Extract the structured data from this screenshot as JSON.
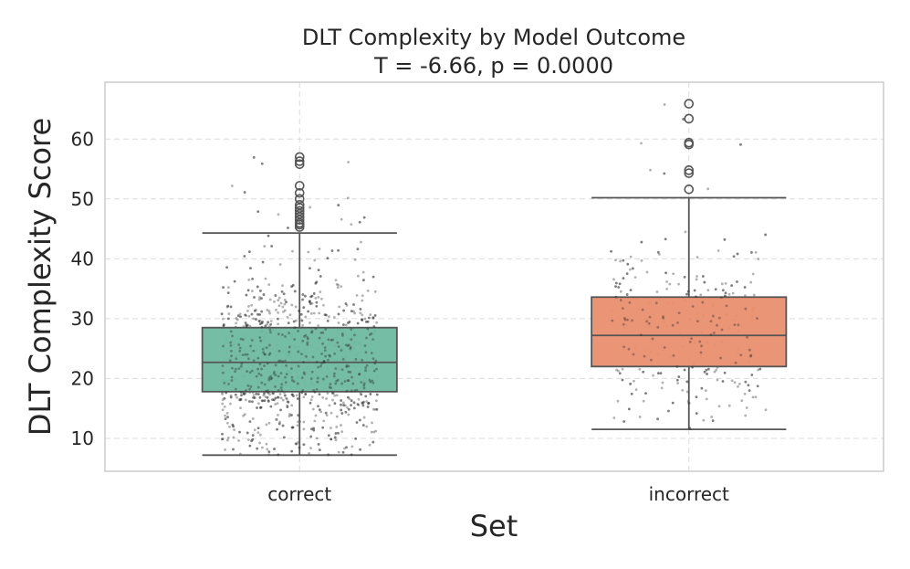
{
  "chart_data": {
    "type": "box",
    "title": "DLT Complexity by Model Outcome",
    "subtitle": "T = -6.66, p = 0.0000",
    "xlabel": "Set",
    "ylabel": "DLT Complexity Score",
    "ylim": [
      4.5,
      69.5
    ],
    "yticks": [
      10,
      20,
      30,
      40,
      50,
      60
    ],
    "grid": true,
    "categories": [
      "correct",
      "incorrect"
    ],
    "colors": [
      "#6fb9a1",
      "#ea8f70"
    ],
    "boxes": [
      {
        "category": "correct",
        "min": 7.2,
        "q1": 17.8,
        "median": 22.7,
        "q3": 28.5,
        "max": 44.3,
        "n_points": 900,
        "outliers": [
          45.3,
          45.7,
          46.0,
          46.5,
          47.0,
          47.5,
          48.0,
          48.5,
          49.0,
          50.0,
          51.0,
          52.2,
          55.8,
          56.3,
          57.0
        ]
      },
      {
        "category": "incorrect",
        "min": 11.5,
        "q1": 22.0,
        "median": 27.2,
        "q3": 33.6,
        "max": 50.2,
        "n_points": 260,
        "outliers": [
          51.6,
          54.3,
          54.8,
          59.1,
          59.4,
          63.4,
          65.9
        ]
      }
    ]
  }
}
